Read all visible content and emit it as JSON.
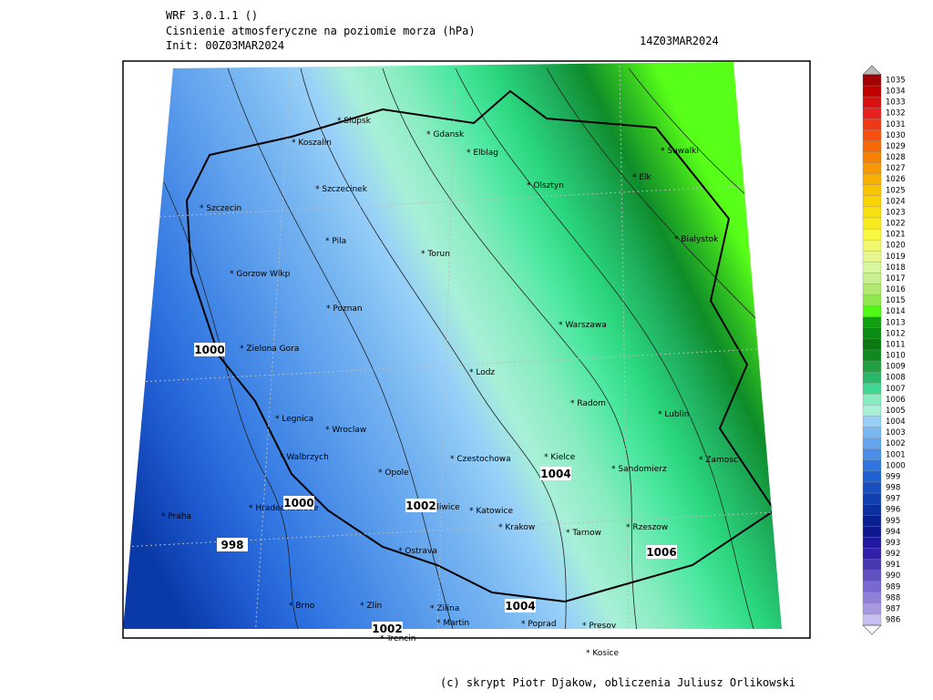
{
  "header": {
    "model": "WRF 3.0.1.1 ()",
    "title": "Cisnienie atmosferyczne na poziomie morza (hPa)",
    "init": "Init: 00Z03MAR2024",
    "valid": "14Z03MAR2024"
  },
  "cities": [
    "Slupsk",
    "Koszalin",
    "Gdansk",
    "Elblag",
    "Olsztyn",
    "Suwalki",
    "Elk",
    "Bialystok",
    "Szczecinek",
    "Szczecin",
    "Pila",
    "Torun",
    "Gorzow Wlkp",
    "Poznan",
    "Warszawa",
    "Zielona Gora",
    "Lodz",
    "Radom",
    "Lublin",
    "Legnica",
    "Wroclaw",
    "Kielce",
    "Zamosc",
    "Walbrzych",
    "Opole",
    "Czestochowa",
    "Sandomierz",
    "Hradec Kralove",
    "Gliwice",
    "Katowice",
    "Krakow",
    "Tarnow",
    "Rzeszow",
    "Praha",
    "Ostrava",
    "Brno",
    "Zlin",
    "Zilina",
    "Martin",
    "Poprad",
    "Presov",
    "Kosice",
    "Trencin"
  ],
  "contour_labels": [
    1000,
    1000,
    998,
    1002,
    1004,
    1004,
    1006,
    1002
  ],
  "colorbar": {
    "levels": [
      1035,
      1034,
      1033,
      1032,
      1031,
      1030,
      1029,
      1028,
      1027,
      1026,
      1025,
      1024,
      1023,
      1022,
      1021,
      1020,
      1019,
      1018,
      1017,
      1016,
      1015,
      1014,
      1013,
      1012,
      1011,
      1010,
      1009,
      1008,
      1007,
      1006,
      1005,
      1004,
      1003,
      1002,
      1001,
      1000,
      999,
      998,
      997,
      996,
      995,
      994,
      993,
      992,
      991,
      990,
      989,
      988,
      987,
      986
    ],
    "colors": [
      "#a00000",
      "#c00000",
      "#d81010",
      "#e82020",
      "#f03818",
      "#f85010",
      "#f86808",
      "#f88000",
      "#f89800",
      "#f8b000",
      "#f8c400",
      "#f8d400",
      "#f8e010",
      "#f8ec20",
      "#f8f840",
      "#f0f870",
      "#e8f890",
      "#d8f8a0",
      "#c8f090",
      "#b0e870",
      "#90e850",
      "#50f818",
      "#10a010",
      "#0a8c14",
      "#0a7a10",
      "#108a20",
      "#20a040",
      "#28b868",
      "#40d890",
      "#88ecc0",
      "#a8f0d8",
      "#98d0f8",
      "#7ab8f2",
      "#62a4ee",
      "#4a8ee8",
      "#2f74e0",
      "#2060d0",
      "#1850c0",
      "#1040b0",
      "#0a30a0",
      "#0a2090",
      "#101890",
      "#2018a0",
      "#3020a8",
      "#4838b0",
      "#6050c0",
      "#7868d0",
      "#9080d8",
      "#a898e0",
      "#c8c0f0"
    ]
  },
  "footer": "(c) skrypt Piotr Djakow, obliczenia Juliusz Orlikowski"
}
